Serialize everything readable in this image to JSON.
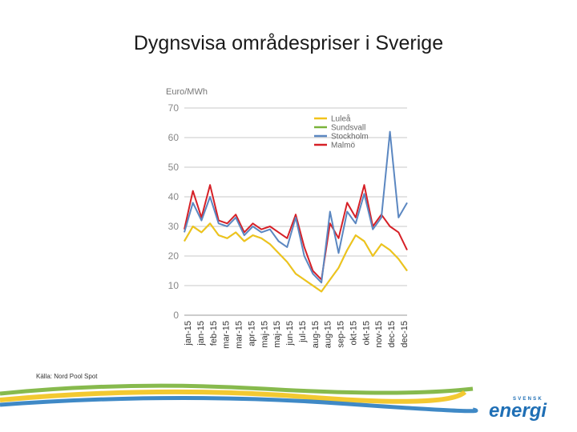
{
  "slide": {
    "title": "Dygnsvisa områdespriser i Sverige",
    "source": "Källa: Nord Pool Spot"
  },
  "logo": {
    "small_text": "SVENSK",
    "main_text": "energi",
    "color": "#1f6fb5"
  },
  "colors": {
    "yellow_stripe": "#f2c31b",
    "green_stripe": "#7ab33a",
    "blue_stripe": "#2a7cc0"
  },
  "chart_data": {
    "type": "line",
    "ylabel": "Euro/MWh",
    "ylim": [
      0,
      70
    ],
    "yticks": [
      0,
      10,
      20,
      30,
      40,
      50,
      60,
      70
    ],
    "grid": true,
    "legend_position": "top-right",
    "x_tick_labels": [
      "jan-15",
      "jan-15",
      "feb-15",
      "mar-15",
      "mar-15",
      "apr-15",
      "maj-15",
      "maj-15",
      "jun-15",
      "jul-15",
      "aug-15",
      "aug-15",
      "sep-15",
      "okt-15",
      "okt-15",
      "nov-15",
      "dec-15",
      "dec-15"
    ],
    "x_points": 27,
    "series": [
      {
        "name": "Luleå",
        "color": "#f2c31b",
        "values": [
          25,
          30,
          28,
          31,
          27,
          26,
          28,
          25,
          27,
          26,
          24,
          21,
          18,
          14,
          12,
          10,
          8,
          12,
          16,
          22,
          27,
          25,
          20,
          24,
          22,
          19,
          15
        ]
      },
      {
        "name": "Sundsvall",
        "color": "#7ab33a",
        "values": [
          25,
          30,
          28,
          31,
          27,
          26,
          28,
          25,
          27,
          26,
          24,
          21,
          18,
          14,
          12,
          10,
          8,
          12,
          16,
          22,
          27,
          25,
          20,
          24,
          22,
          19,
          15
        ]
      },
      {
        "name": "Stockholm",
        "color": "#5b87c1",
        "values": [
          28,
          38,
          32,
          40,
          31,
          30,
          33,
          27,
          30,
          28,
          29,
          25,
          23,
          33,
          20,
          14,
          11,
          35,
          21,
          35,
          31,
          41,
          29,
          33,
          62,
          33,
          38
        ]
      },
      {
        "name": "Malmö",
        "color": "#d62027",
        "values": [
          29,
          42,
          33,
          44,
          32,
          31,
          34,
          28,
          31,
          29,
          30,
          28,
          26,
          34,
          23,
          15,
          12,
          31,
          26,
          38,
          33,
          44,
          30,
          34,
          30,
          28,
          22
        ]
      }
    ]
  }
}
